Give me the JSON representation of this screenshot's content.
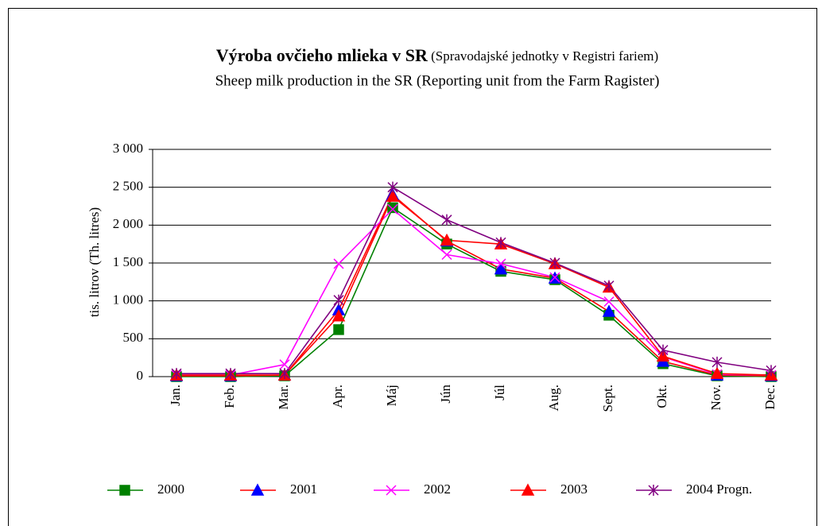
{
  "chart_data": {
    "type": "line",
    "title": "Výroba ovčieho mlieka v SR",
    "title_note": "(Spravodajské jednotky v Registri fariem)",
    "subtitle": "Sheep milk production in the SR (Reporting unit from the Farm Ragister)",
    "y_label": "tis. litrov (Th. litres)",
    "categories": [
      "Jan.",
      "Feb.",
      "Mar.",
      "Apr.",
      "Máj",
      "Jún",
      "Júl",
      "Aug.",
      "Sept.",
      "Okt.",
      "Nov.",
      "Dec."
    ],
    "series": [
      {
        "name": "2000",
        "color": "#008000",
        "marker_color": "#008000",
        "marker": "square",
        "values": [
          0,
          0,
          10,
          620,
          2230,
          1750,
          1390,
          1280,
          810,
          170,
          10,
          0
        ]
      },
      {
        "name": "2001",
        "color": "#ff0000",
        "marker_color": "#0000ff",
        "marker": "triangle",
        "values": [
          10,
          10,
          20,
          880,
          2400,
          1790,
          1420,
          1300,
          860,
          200,
          20,
          10
        ]
      },
      {
        "name": "2002",
        "color": "#ff00ff",
        "marker_color": "#ff00ff",
        "marker": "x",
        "values": [
          20,
          20,
          160,
          1490,
          2210,
          1610,
          1490,
          1310,
          990,
          260,
          30,
          20
        ]
      },
      {
        "name": "2003",
        "color": "#ff0000",
        "marker_color": "#ff0000",
        "marker": "triangle",
        "values": [
          20,
          20,
          20,
          800,
          2380,
          1800,
          1750,
          1490,
          1180,
          270,
          40,
          20
        ]
      },
      {
        "name": "2004 Progn.",
        "color": "#800080",
        "marker_color": "#800080",
        "marker": "star",
        "values": [
          40,
          40,
          40,
          1010,
          2500,
          2070,
          1770,
          1500,
          1200,
          350,
          190,
          80
        ]
      }
    ],
    "ylim": [
      0,
      3000
    ],
    "yticks": [
      0,
      500,
      {
        "value": 1000,
        "label": "1 000"
      },
      {
        "value": 1500,
        "label": "1 500"
      },
      {
        "value": 2000,
        "label": "2 000"
      },
      {
        "value": 2500,
        "label": "2 500"
      },
      {
        "value": 3000,
        "label": "3 000"
      }
    ],
    "grid": true,
    "legend": "bottom"
  }
}
